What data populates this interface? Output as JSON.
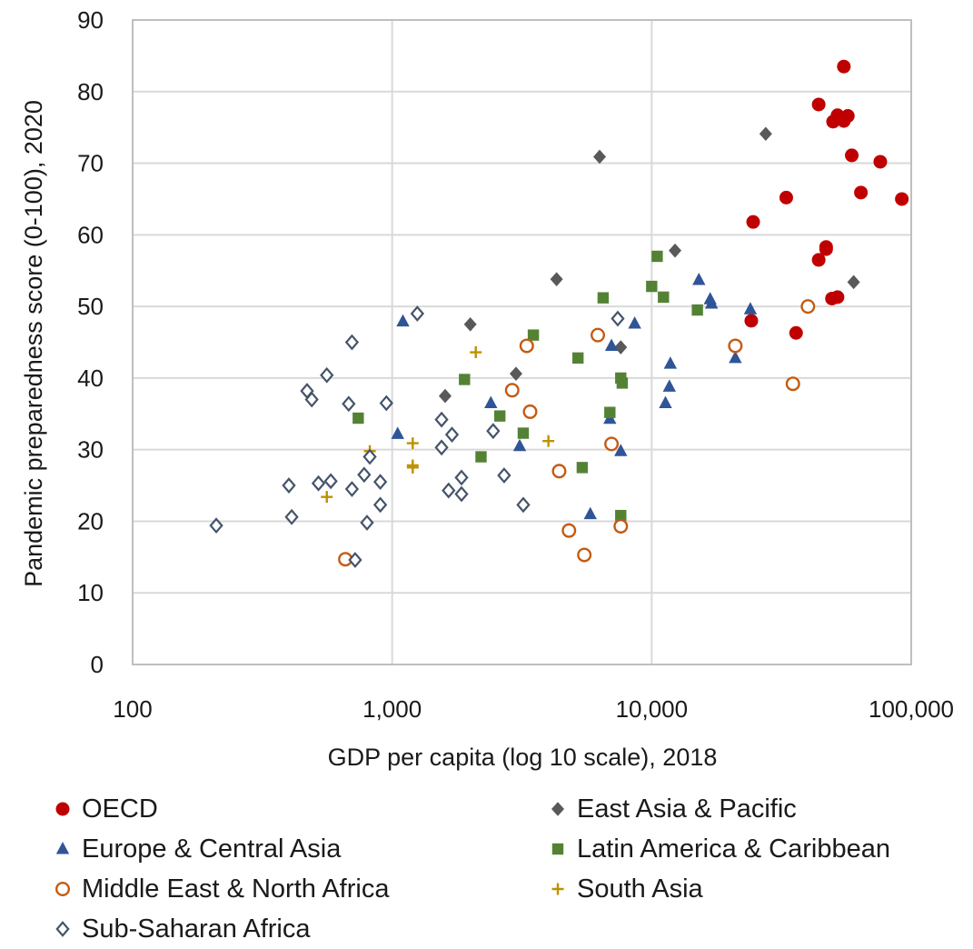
{
  "chart_data": {
    "type": "scatter",
    "title": "",
    "xlabel": "GDP per capita (log 10 scale), 2018",
    "ylabel": "Pandemic preparedness score (0-100), 2020",
    "xscale": "log",
    "xlim": [
      100,
      100000
    ],
    "ylim": [
      0,
      90
    ],
    "xticks": [
      100,
      1000,
      10000,
      100000
    ],
    "xtick_labels": [
      "100",
      "1,000",
      "10,000",
      "100,000"
    ],
    "yticks": [
      0,
      10,
      20,
      30,
      40,
      50,
      60,
      70,
      80,
      90
    ],
    "grid": true,
    "legend_position": "bottom",
    "series": [
      {
        "name": "OECD",
        "marker": "filled-circle",
        "color": "#c00000",
        "points": [
          [
            55000,
            83.5
          ],
          [
            44000,
            78.2
          ],
          [
            57000,
            76.6
          ],
          [
            52000,
            76.7
          ],
          [
            50000,
            75.8
          ],
          [
            55000,
            75.9
          ],
          [
            59000,
            71.1
          ],
          [
            76000,
            70.2
          ],
          [
            64000,
            65.9
          ],
          [
            92000,
            65
          ],
          [
            33000,
            65.2
          ],
          [
            24600,
            61.8
          ],
          [
            47000,
            58.3
          ],
          [
            44000,
            56.5
          ],
          [
            47000,
            58
          ],
          [
            52000,
            51.3
          ],
          [
            49500,
            51.1
          ],
          [
            36000,
            46.3
          ],
          [
            24200,
            48
          ]
        ]
      },
      {
        "name": "East Asia & Pacific",
        "marker": "filled-diamond",
        "color": "#595959",
        "points": [
          [
            6300,
            70.9
          ],
          [
            27500,
            74.1
          ],
          [
            12300,
            57.8
          ],
          [
            4300,
            53.8
          ],
          [
            60000,
            53.4
          ],
          [
            2000,
            47.5
          ],
          [
            7600,
            44.3
          ],
          [
            3000,
            40.6
          ],
          [
            1600,
            37.5
          ]
        ]
      },
      {
        "name": "Europe & Central Asia",
        "marker": "filled-triangle",
        "color": "#2f5597",
        "points": [
          [
            1100,
            47.9
          ],
          [
            15200,
            53.7
          ],
          [
            16800,
            51
          ],
          [
            17000,
            50.4
          ],
          [
            24000,
            49.6
          ],
          [
            8600,
            47.6
          ],
          [
            7000,
            44.5
          ],
          [
            21000,
            42.8
          ],
          [
            11800,
            42
          ],
          [
            11700,
            38.8
          ],
          [
            11300,
            36.5
          ],
          [
            2400,
            36.5
          ],
          [
            6900,
            34.3
          ],
          [
            1050,
            32.2
          ],
          [
            3100,
            30.5
          ],
          [
            7600,
            29.8
          ],
          [
            5800,
            21
          ]
        ]
      },
      {
        "name": "Latin America & Caribbean",
        "marker": "filled-square",
        "color": "#548235",
        "points": [
          [
            10500,
            57
          ],
          [
            10000,
            52.8
          ],
          [
            6500,
            51.2
          ],
          [
            11100,
            51.3
          ],
          [
            15000,
            49.5
          ],
          [
            3500,
            46
          ],
          [
            5200,
            42.8
          ],
          [
            1900,
            39.8
          ],
          [
            7600,
            40
          ],
          [
            7700,
            39.3
          ],
          [
            740,
            34.4
          ],
          [
            2600,
            34.7
          ],
          [
            6900,
            35.2
          ],
          [
            3200,
            32.3
          ],
          [
            2200,
            29
          ],
          [
            5400,
            27.5
          ],
          [
            7600,
            20.8
          ]
        ]
      },
      {
        "name": "Middle East & North Africa",
        "marker": "open-circle",
        "color": "#c55a11",
        "points": [
          [
            40000,
            50
          ],
          [
            6200,
            46
          ],
          [
            3300,
            44.5
          ],
          [
            21000,
            44.5
          ],
          [
            35000,
            39.2
          ],
          [
            2900,
            38.3
          ],
          [
            3400,
            35.3
          ],
          [
            7000,
            30.8
          ],
          [
            4400,
            27
          ],
          [
            4800,
            18.7
          ],
          [
            5500,
            15.3
          ],
          [
            7600,
            19.3
          ],
          [
            660,
            14.7
          ]
        ]
      },
      {
        "name": "South Asia",
        "marker": "plus",
        "color": "#bf9000",
        "points": [
          [
            2100,
            43.6
          ],
          [
            4000,
            31.2
          ],
          [
            1200,
            30.9
          ],
          [
            820,
            29.8
          ],
          [
            1200,
            27.8
          ],
          [
            1200,
            27.5
          ],
          [
            560,
            23.4
          ]
        ]
      },
      {
        "name": "Sub-Saharan Africa",
        "marker": "open-diamond",
        "color": "#44546a",
        "points": [
          [
            1250,
            49
          ],
          [
            7400,
            48.3
          ],
          [
            700,
            45
          ],
          [
            560,
            40.4
          ],
          [
            470,
            38.2
          ],
          [
            490,
            37
          ],
          [
            680,
            36.4
          ],
          [
            950,
            36.5
          ],
          [
            1550,
            34.2
          ],
          [
            1700,
            32.1
          ],
          [
            2450,
            32.6
          ],
          [
            1550,
            30.3
          ],
          [
            820,
            29
          ],
          [
            780,
            26.5
          ],
          [
            900,
            25.5
          ],
          [
            580,
            25.6
          ],
          [
            520,
            25.3
          ],
          [
            400,
            25
          ],
          [
            700,
            24.5
          ],
          [
            1650,
            24.3
          ],
          [
            1850,
            23.8
          ],
          [
            1850,
            26.1
          ],
          [
            2700,
            26.4
          ],
          [
            900,
            22.3
          ],
          [
            3200,
            22.3
          ],
          [
            410,
            20.6
          ],
          [
            800,
            19.8
          ],
          [
            210,
            19.4
          ],
          [
            720,
            14.6
          ]
        ]
      }
    ]
  }
}
